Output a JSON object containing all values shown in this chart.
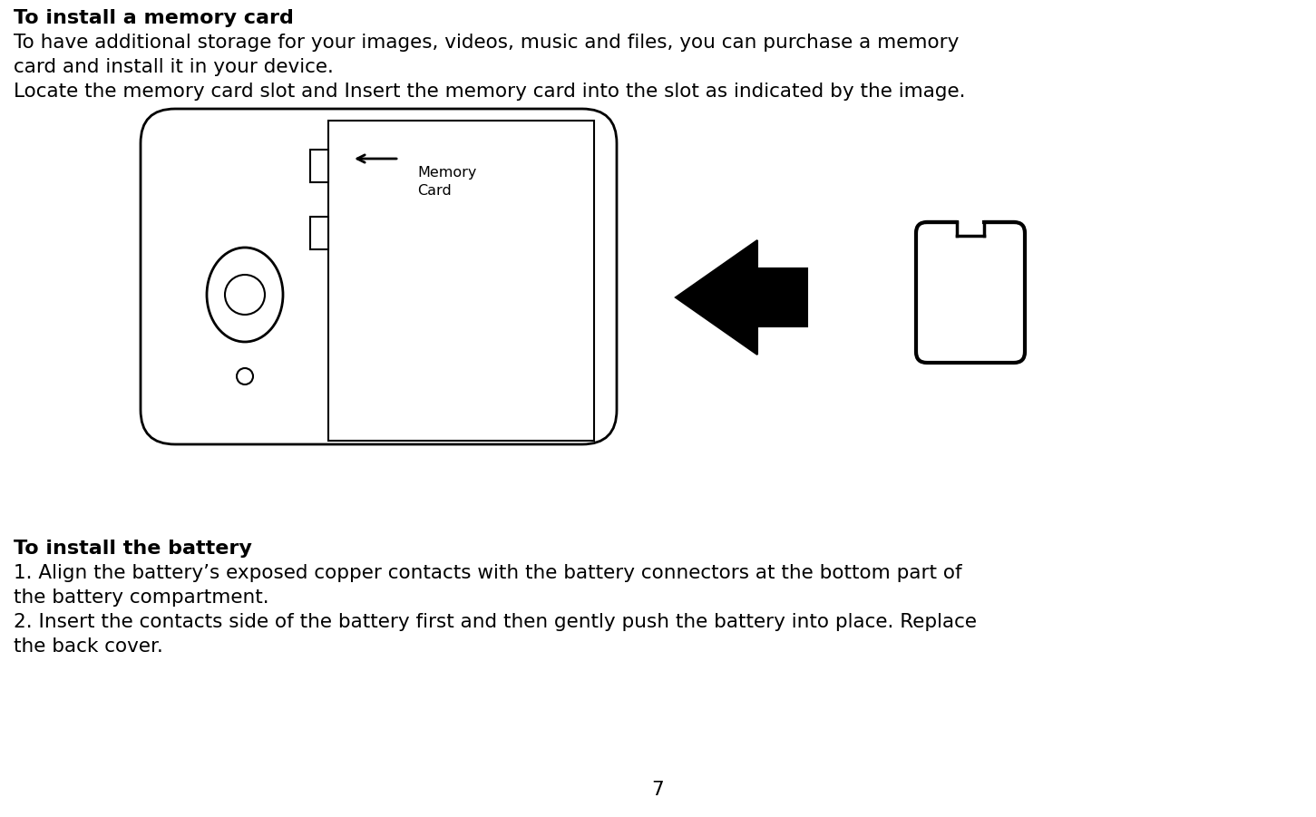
{
  "bg_color": "#ffffff",
  "text_color": "#000000",
  "title1": "To install a memory card",
  "body1_line1": "To have additional storage for your images, videos, music and files, you can purchase a memory",
  "body1_line2": "card and install it in your device.",
  "body1_line3": "Locate the memory card slot and Insert the memory card into the slot as indicated by the image.",
  "title2": "To install the battery",
  "body2_line1": "1. Align the battery’s exposed copper contacts with the battery connectors at the bottom part of",
  "body2_line2": "the battery compartment.",
  "body2_line3": "2. Insert the contacts side of the battery first and then gently push the battery into place. Replace",
  "body2_line4": "the back cover.",
  "page_number": "7",
  "memory_card_label": "Memory\nCard",
  "font_size_title": 16,
  "font_size_body": 15.5,
  "font_size_label": 11.5
}
